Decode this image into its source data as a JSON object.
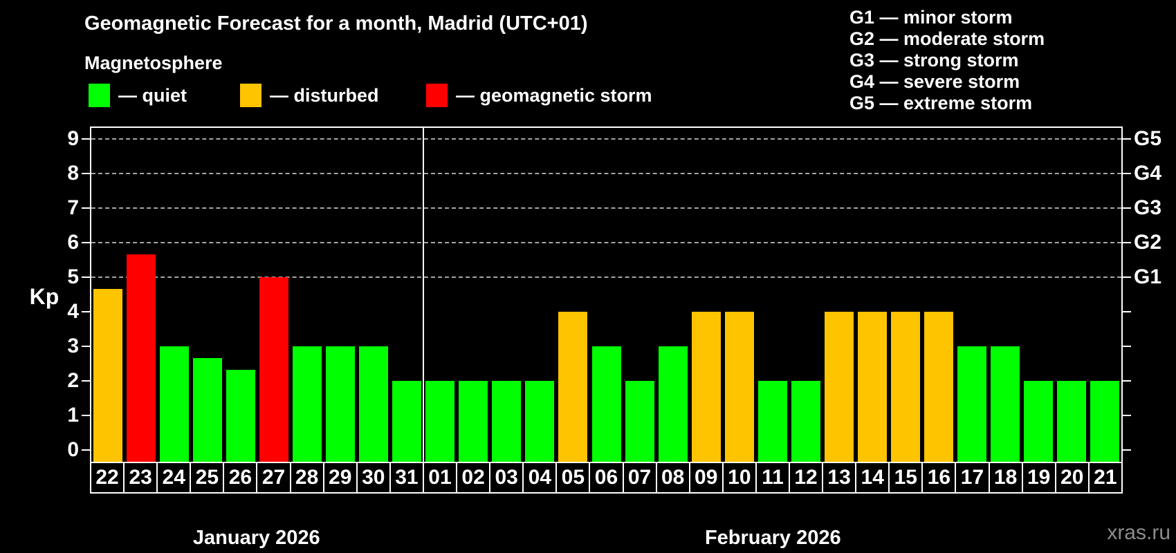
{
  "title": "Geomagnetic Forecast for a month, Madrid (UTC+01)",
  "subtitle": "Magnetosphere",
  "legend": {
    "items": [
      {
        "status": "quiet",
        "label": "— quiet",
        "color": "#00ff00"
      },
      {
        "status": "disturbed",
        "label": "— disturbed",
        "color": "#ffc400"
      },
      {
        "status": "storm",
        "label": "— geomagnetic storm",
        "color": "#ff0000"
      }
    ]
  },
  "g_scale": [
    "G1 — minor storm",
    "G2 — moderate storm",
    "G3 — strong storm",
    "G4 — severe storm",
    "G5 — extreme storm"
  ],
  "axis": {
    "kp_label": "Kp",
    "y_ticks": [
      "0",
      "1",
      "2",
      "3",
      "4",
      "5",
      "6",
      "7",
      "8",
      "9"
    ],
    "g_ticks": [
      "G1",
      "G2",
      "G3",
      "G4",
      "G5"
    ]
  },
  "watermark": "xras.ru",
  "chart_data": {
    "type": "bar",
    "ylabel": "Kp",
    "ylim": [
      0,
      9
    ],
    "grid_levels": [
      5,
      6,
      7,
      8,
      9
    ],
    "grid_on": true,
    "legend_position": "top",
    "status_colors": {
      "quiet": "#00ff00",
      "disturbed": "#ffc400",
      "storm": "#ff0000"
    },
    "months": [
      {
        "label": "January 2026",
        "days": [
          {
            "day": "22",
            "kp": 4.67,
            "status": "disturbed"
          },
          {
            "day": "23",
            "kp": 5.67,
            "status": "storm"
          },
          {
            "day": "24",
            "kp": 3,
            "status": "quiet"
          },
          {
            "day": "25",
            "kp": 2.67,
            "status": "quiet"
          },
          {
            "day": "26",
            "kp": 2.33,
            "status": "quiet"
          },
          {
            "day": "27",
            "kp": 5,
            "status": "storm"
          },
          {
            "day": "28",
            "kp": 3,
            "status": "quiet"
          },
          {
            "day": "29",
            "kp": 3,
            "status": "quiet"
          },
          {
            "day": "30",
            "kp": 3,
            "status": "quiet"
          },
          {
            "day": "31",
            "kp": 2,
            "status": "quiet"
          }
        ]
      },
      {
        "label": "February 2026",
        "days": [
          {
            "day": "01",
            "kp": 2,
            "status": "quiet"
          },
          {
            "day": "02",
            "kp": 2,
            "status": "quiet"
          },
          {
            "day": "03",
            "kp": 2,
            "status": "quiet"
          },
          {
            "day": "04",
            "kp": 2,
            "status": "quiet"
          },
          {
            "day": "05",
            "kp": 4,
            "status": "disturbed"
          },
          {
            "day": "06",
            "kp": 3,
            "status": "quiet"
          },
          {
            "day": "07",
            "kp": 2,
            "status": "quiet"
          },
          {
            "day": "08",
            "kp": 3,
            "status": "quiet"
          },
          {
            "day": "09",
            "kp": 4,
            "status": "disturbed"
          },
          {
            "day": "10",
            "kp": 4,
            "status": "disturbed"
          },
          {
            "day": "11",
            "kp": 2,
            "status": "quiet"
          },
          {
            "day": "12",
            "kp": 2,
            "status": "quiet"
          },
          {
            "day": "13",
            "kp": 4,
            "status": "disturbed"
          },
          {
            "day": "14",
            "kp": 4,
            "status": "disturbed"
          },
          {
            "day": "15",
            "kp": 4,
            "status": "disturbed"
          },
          {
            "day": "16",
            "kp": 4,
            "status": "disturbed"
          },
          {
            "day": "17",
            "kp": 3,
            "status": "quiet"
          },
          {
            "day": "18",
            "kp": 3,
            "status": "quiet"
          },
          {
            "day": "19",
            "kp": 2,
            "status": "quiet"
          },
          {
            "day": "20",
            "kp": 2,
            "status": "quiet"
          },
          {
            "day": "21",
            "kp": 2,
            "status": "quiet"
          }
        ]
      }
    ]
  }
}
